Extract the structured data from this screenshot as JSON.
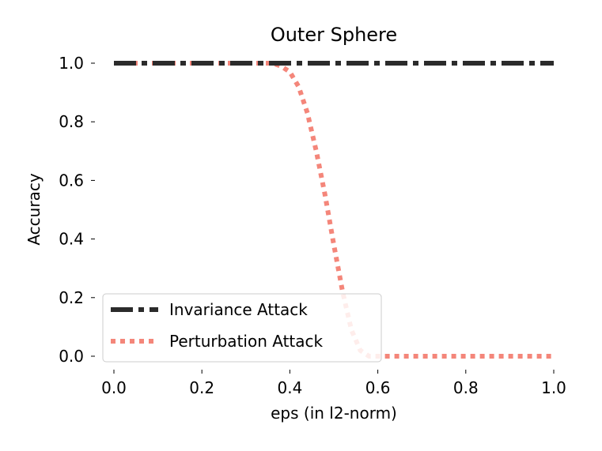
{
  "chart_data": {
    "type": "line",
    "title": "Outer Sphere",
    "xlabel": "eps (in l2-norm)",
    "ylabel": "Accuracy",
    "xlim": [
      0.0,
      1.0
    ],
    "ylim": [
      0.0,
      1.0
    ],
    "xticks": [
      "0.0",
      "0.2",
      "0.4",
      "0.6",
      "0.8",
      "1.0"
    ],
    "yticks": [
      "0.0",
      "0.2",
      "0.4",
      "0.6",
      "0.8",
      "1.0"
    ],
    "grid": false,
    "legend_position": "lower-left",
    "series": [
      {
        "name": "Invariance Attack",
        "color": "#2b2b2b",
        "style": "dashdot",
        "x": [
          0.0,
          0.1,
          0.2,
          0.3,
          0.4,
          0.5,
          0.6,
          0.7,
          0.8,
          0.9,
          1.0
        ],
        "y": [
          1.0,
          1.0,
          1.0,
          1.0,
          1.0,
          1.0,
          1.0,
          1.0,
          1.0,
          1.0,
          1.0
        ]
      },
      {
        "name": "Perturbation Attack",
        "color": "#f4867a",
        "style": "dotted",
        "x": [
          0.0,
          0.1,
          0.2,
          0.3,
          0.36,
          0.38,
          0.4,
          0.42,
          0.44,
          0.46,
          0.48,
          0.5,
          0.52,
          0.54,
          0.56,
          0.58,
          0.6,
          0.7,
          0.8,
          0.9,
          1.0
        ],
        "y": [
          1.0,
          1.0,
          1.0,
          1.0,
          1.0,
          0.99,
          0.97,
          0.92,
          0.83,
          0.7,
          0.55,
          0.38,
          0.22,
          0.09,
          0.02,
          0.0,
          0.0,
          0.0,
          0.0,
          0.0,
          0.0
        ]
      }
    ]
  }
}
